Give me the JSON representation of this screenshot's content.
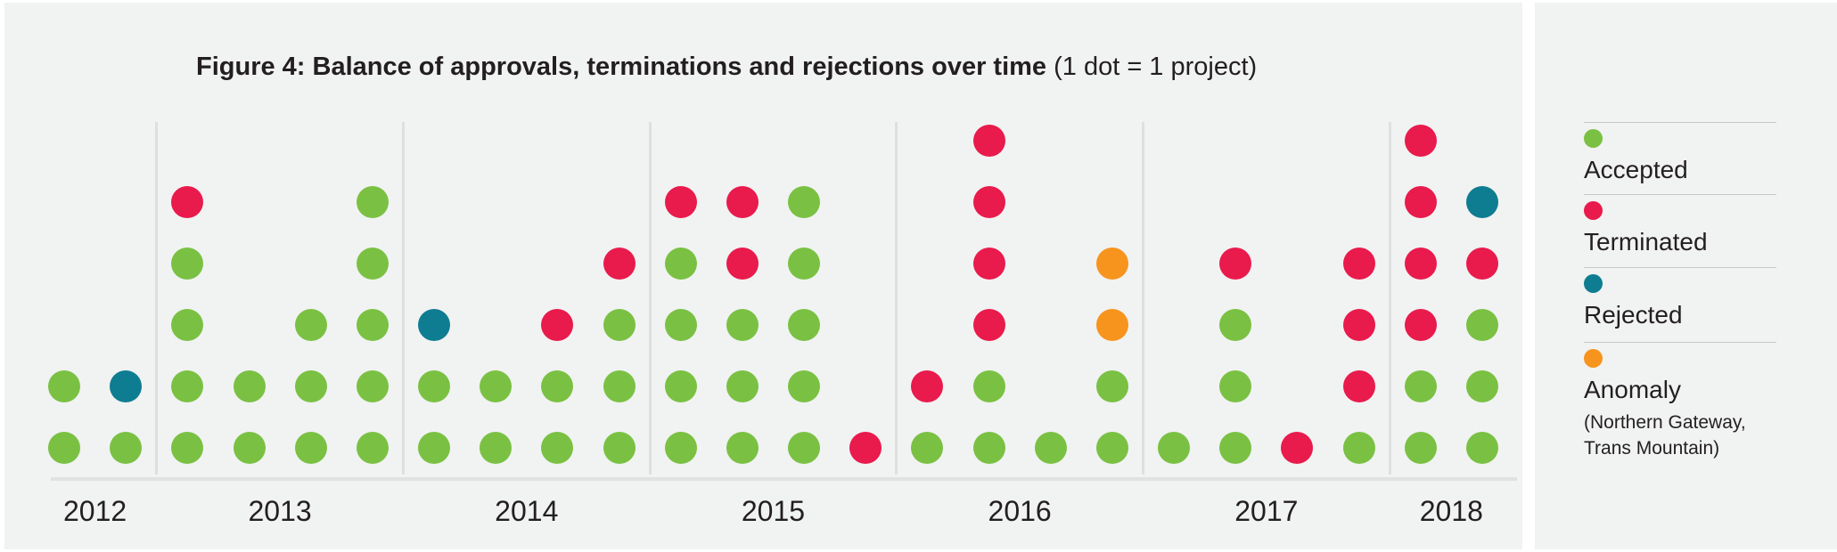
{
  "chart_data": {
    "type": "scatter",
    "variant": "dot-plot (1 dot = 1 project, stacked per quarter)",
    "title": "Figure 4: Balance of approvals, terminations and rejections over time",
    "subtitle": " (1 dot = 1 project)",
    "x_axis": {
      "label": "",
      "tick_labels": [
        "2012",
        "2013",
        "2014",
        "2015",
        "2016",
        "2017",
        "2018"
      ],
      "grid": "vertical separators between years"
    },
    "y_axis": {
      "label": "",
      "meaning": "count of projects (1 dot = 1 project)",
      "max_stack": 6
    },
    "colors": {
      "accepted": "#7ac143",
      "terminated": "#e91a4c",
      "rejected": "#0e7d91",
      "anomaly": "#f7941e"
    },
    "years": [
      {
        "label": "2012",
        "col_start": 0,
        "col_end": 1
      },
      {
        "label": "2013",
        "col_start": 2,
        "col_end": 5
      },
      {
        "label": "2014",
        "col_start": 6,
        "col_end": 9
      },
      {
        "label": "2015",
        "col_start": 10,
        "col_end": 13
      },
      {
        "label": "2016",
        "col_start": 14,
        "col_end": 17
      },
      {
        "label": "2017",
        "col_start": 18,
        "col_end": 21
      },
      {
        "label": "2018",
        "col_start": 22,
        "col_end": 23
      }
    ],
    "columns": [
      {
        "year": "2012",
        "col": 0,
        "stack": [
          "accepted",
          "accepted"
        ]
      },
      {
        "year": "2012",
        "col": 1,
        "stack": [
          "accepted",
          "rejected"
        ]
      },
      {
        "year": "2013",
        "col": 2,
        "stack": [
          "accepted",
          "accepted",
          "accepted",
          "accepted",
          "terminated"
        ]
      },
      {
        "year": "2013",
        "col": 3,
        "stack": [
          "accepted",
          "accepted"
        ]
      },
      {
        "year": "2013",
        "col": 4,
        "stack": [
          "accepted",
          "accepted",
          "accepted"
        ]
      },
      {
        "year": "2013",
        "col": 5,
        "stack": [
          "accepted",
          "accepted",
          "accepted",
          "accepted",
          "accepted"
        ]
      },
      {
        "year": "2014",
        "col": 6,
        "stack": [
          "accepted",
          "accepted",
          "rejected"
        ]
      },
      {
        "year": "2014",
        "col": 7,
        "stack": [
          "accepted",
          "accepted"
        ]
      },
      {
        "year": "2014",
        "col": 8,
        "stack": [
          "accepted",
          "accepted",
          "terminated"
        ]
      },
      {
        "year": "2014",
        "col": 9,
        "stack": [
          "accepted",
          "accepted",
          "accepted",
          "terminated"
        ]
      },
      {
        "year": "2015",
        "col": 10,
        "stack": [
          "accepted",
          "accepted",
          "accepted",
          "accepted",
          "terminated"
        ]
      },
      {
        "year": "2015",
        "col": 11,
        "stack": [
          "accepted",
          "accepted",
          "accepted",
          "terminated",
          "terminated"
        ]
      },
      {
        "year": "2015",
        "col": 12,
        "stack": [
          "accepted",
          "accepted",
          "accepted",
          "accepted",
          "accepted"
        ]
      },
      {
        "year": "2015",
        "col": 13,
        "stack": [
          "terminated"
        ]
      },
      {
        "year": "2016",
        "col": 14,
        "stack": [
          "accepted",
          "terminated"
        ]
      },
      {
        "year": "2016",
        "col": 15,
        "stack": [
          "accepted",
          "accepted",
          "terminated",
          "terminated",
          "terminated",
          "terminated"
        ]
      },
      {
        "year": "2016",
        "col": 16,
        "stack": [
          "accepted"
        ]
      },
      {
        "year": "2016",
        "col": 17,
        "stack": [
          "accepted",
          "accepted",
          "anomaly",
          "anomaly"
        ]
      },
      {
        "year": "2017",
        "col": 18,
        "stack": [
          "accepted"
        ]
      },
      {
        "year": "2017",
        "col": 19,
        "stack": [
          "accepted",
          "accepted",
          "accepted",
          "terminated"
        ]
      },
      {
        "year": "2017",
        "col": 20,
        "stack": [
          "terminated"
        ]
      },
      {
        "year": "2017",
        "col": 21,
        "stack": [
          "accepted",
          "terminated",
          "terminated",
          "terminated"
        ]
      },
      {
        "year": "2018",
        "col": 22,
        "stack": [
          "accepted",
          "accepted",
          "terminated",
          "terminated",
          "terminated",
          "terminated"
        ]
      },
      {
        "year": "2018",
        "col": 23,
        "stack": [
          "accepted",
          "accepted",
          "accepted",
          "terminated",
          "rejected"
        ]
      }
    ],
    "legend": [
      {
        "label": "Accepted",
        "status": "accepted"
      },
      {
        "label": "Terminated",
        "status": "terminated"
      },
      {
        "label": "Rejected",
        "status": "rejected"
      },
      {
        "label": "Anomaly",
        "status": "anomaly",
        "note": "(Northern Gateway, Trans Mountain)"
      }
    ],
    "legend_position": "right"
  }
}
